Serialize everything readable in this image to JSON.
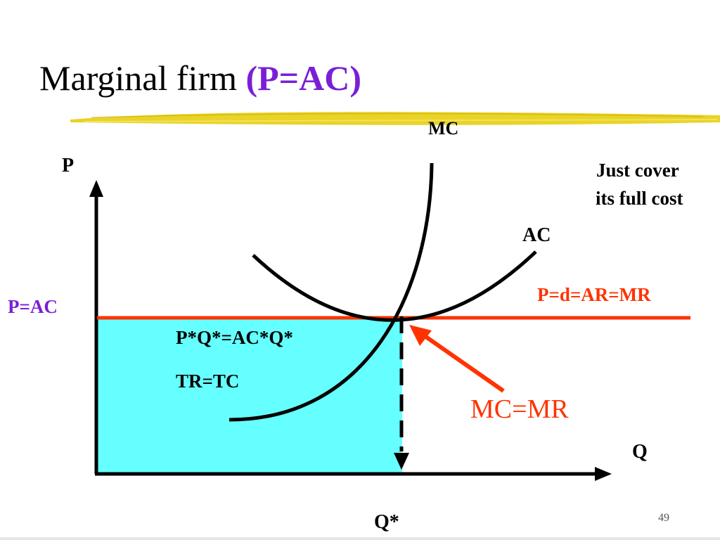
{
  "slide": {
    "title_main": "Marginal firm ",
    "title_highlight": "(P=AC)",
    "page_number": "49"
  },
  "diagram": {
    "y_axis_label": "P",
    "x_axis_label": "Q",
    "mc_label": "MC",
    "ac_label": "AC",
    "price_line_label": "P=d=AR=MR",
    "price_level_label": "P=AC",
    "quantity_label": "Q*",
    "note_line1": "Just cover",
    "note_line2": "its full cost",
    "area_eq1": "P*Q*=AC*Q*",
    "area_eq2": "TR=TC",
    "equilibrium_label": "MC=MR"
  },
  "colors": {
    "price_line": "#ff3300",
    "area_fill": "#66ffff",
    "highlight": "#7a1fd6",
    "brush": "#e8d11a",
    "curve": "#000000"
  }
}
